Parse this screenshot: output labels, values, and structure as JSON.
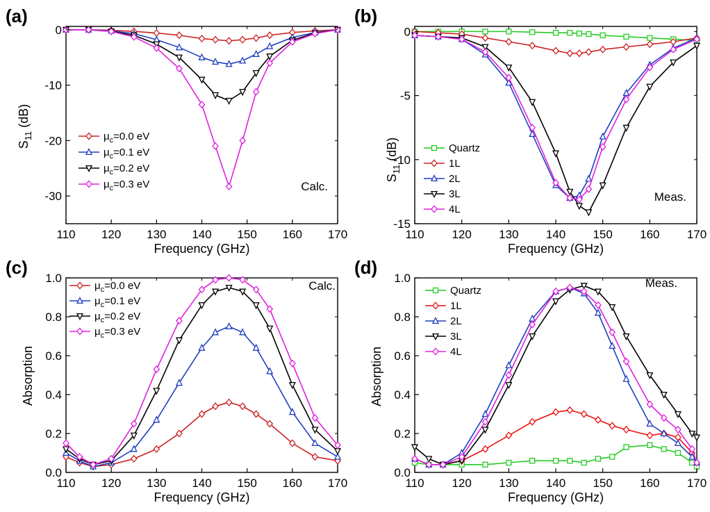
{
  "chart_data": [
    {
      "panel_label": "(a)",
      "type": "line",
      "xlabel": "Frequency (GHz)",
      "ylabel_main": "S",
      "ylabel_sub": "11",
      "ylabel_unit": " (dB)",
      "annotation": "Calc.",
      "xlim": [
        110,
        170
      ],
      "ylim": [
        -35,
        0.6
      ],
      "xticks": [
        110,
        120,
        130,
        140,
        150,
        160,
        170
      ],
      "yticks": [
        0,
        -10,
        -20,
        -30
      ],
      "x": [
        110,
        115,
        120,
        125,
        130,
        135,
        140,
        143,
        146,
        149,
        152,
        155,
        160,
        165,
        170
      ],
      "legend_placement": "left",
      "series": [
        {
          "name": "μc=0.0 eV",
          "name_main": "μ",
          "name_sub": "c",
          "name_rest": "=0.0 eV",
          "color": "#cc2222",
          "marker": "diamond",
          "values": [
            0,
            0,
            -0.1,
            -0.3,
            -0.6,
            -1.0,
            -1.6,
            -1.8,
            -2.0,
            -1.8,
            -1.5,
            -1.0,
            -0.5,
            -0.2,
            0
          ]
        },
        {
          "name": "μc=0.1 eV",
          "name_main": "μ",
          "name_sub": "c",
          "name_rest": "=0.1 eV",
          "color": "#1f3fbf",
          "marker": "triangle-up",
          "values": [
            0,
            0,
            -0.2,
            -0.7,
            -1.8,
            -3.2,
            -5.0,
            -5.8,
            -6.2,
            -5.6,
            -4.4,
            -3.0,
            -1.4,
            -0.5,
            0
          ]
        },
        {
          "name": "μc=0.2 eV",
          "name_main": "μ",
          "name_sub": "c",
          "name_rest": "=0.2 eV",
          "color": "#000000",
          "marker": "triangle-down",
          "values": [
            0,
            0,
            -0.3,
            -1.0,
            -2.6,
            -5.0,
            -9.0,
            -11.8,
            -12.8,
            -11.2,
            -7.8,
            -4.8,
            -1.9,
            -0.6,
            0
          ]
        },
        {
          "name": "μc=0.3 eV",
          "name_main": "μ",
          "name_sub": "c",
          "name_rest": "=0.3 eV",
          "color": "#e020e0",
          "marker": "diamond",
          "values": [
            0,
            0,
            -0.3,
            -1.3,
            -3.3,
            -7.0,
            -13.5,
            -21.0,
            -28.3,
            -20.0,
            -11.2,
            -6.0,
            -2.2,
            -0.7,
            0
          ]
        }
      ]
    },
    {
      "panel_label": "(b)",
      "type": "line",
      "xlabel": "Frequency (GHz)",
      "ylabel_main": "S",
      "ylabel_sub": "11",
      "ylabel_unit": " (dB)",
      "annotation": "Meas.",
      "xlim": [
        110,
        170
      ],
      "ylim": [
        -15,
        0.4
      ],
      "xticks": [
        110,
        120,
        130,
        140,
        150,
        160,
        170
      ],
      "yticks": [
        0,
        -5,
        -10,
        -15
      ],
      "x": [
        110,
        115,
        120,
        125,
        130,
        135,
        140,
        143,
        145,
        147,
        150,
        155,
        160,
        165,
        170
      ],
      "legend_placement": "left",
      "series": [
        {
          "name": "Quartz",
          "color": "#22cc22",
          "marker": "square",
          "values": [
            0,
            0,
            0,
            0,
            0,
            -0.05,
            -0.1,
            -0.1,
            -0.15,
            -0.2,
            -0.3,
            -0.4,
            -0.5,
            -0.6,
            -0.7
          ]
        },
        {
          "name": "1L",
          "color": "#cc2222",
          "marker": "diamond",
          "values": [
            0,
            -0.1,
            -0.2,
            -0.5,
            -0.8,
            -1.1,
            -1.5,
            -1.7,
            -1.7,
            -1.6,
            -1.4,
            -1.2,
            -1.0,
            -0.8,
            -0.5
          ]
        },
        {
          "name": "2L",
          "color": "#1f3fbf",
          "marker": "triangle-up",
          "values": [
            -0.3,
            -0.4,
            -0.6,
            -1.8,
            -4.0,
            -8.0,
            -12.0,
            -13.0,
            -12.8,
            -11.5,
            -8.2,
            -4.8,
            -2.6,
            -1.3,
            -0.5
          ]
        },
        {
          "name": "3L",
          "color": "#000000",
          "marker": "triangle-down",
          "values": [
            -0.3,
            -0.4,
            -0.5,
            -1.2,
            -2.8,
            -5.5,
            -9.5,
            -12.5,
            -13.6,
            -14.1,
            -12.0,
            -7.5,
            -4.3,
            -2.4,
            -1.1
          ]
        },
        {
          "name": "4L",
          "color": "#e020e0",
          "marker": "diamond",
          "values": [
            -0.3,
            -0.4,
            -0.6,
            -1.6,
            -3.6,
            -7.5,
            -11.8,
            -13.0,
            -13.1,
            -12.3,
            -9.0,
            -5.3,
            -2.8,
            -1.4,
            -0.6
          ]
        }
      ]
    },
    {
      "panel_label": "(c)",
      "type": "line",
      "xlabel": "Frequency (GHz)",
      "ylabel_main": "Absorption",
      "ylabel_sub": "",
      "ylabel_unit": "",
      "annotation": "Calc.",
      "xlim": [
        110,
        170
      ],
      "ylim": [
        0,
        1.0
      ],
      "xticks": [
        110,
        120,
        130,
        140,
        150,
        160,
        170
      ],
      "yticks": [
        0.0,
        0.2,
        0.4,
        0.6,
        0.8,
        1.0
      ],
      "ytick_labels": [
        "0.0",
        "0.2",
        "0.4",
        "0.6",
        "0.8",
        "1.0"
      ],
      "x": [
        110,
        113,
        116,
        120,
        125,
        130,
        135,
        140,
        143,
        146,
        149,
        152,
        155,
        160,
        165,
        170
      ],
      "legend_placement": "top-left",
      "series": [
        {
          "name": "μc=0.0 eV",
          "name_main": "μ",
          "name_sub": "c",
          "name_rest": "=0.0 eV",
          "color": "#cc2222",
          "marker": "diamond",
          "values": [
            0.08,
            0.05,
            0.03,
            0.04,
            0.07,
            0.12,
            0.2,
            0.3,
            0.34,
            0.36,
            0.34,
            0.3,
            0.25,
            0.15,
            0.08,
            0.06
          ]
        },
        {
          "name": "μc=0.1 eV",
          "name_main": "μ",
          "name_sub": "c",
          "name_rest": "=0.1 eV",
          "color": "#1f3fbf",
          "marker": "triangle-up",
          "values": [
            0.1,
            0.06,
            0.03,
            0.05,
            0.12,
            0.27,
            0.46,
            0.64,
            0.72,
            0.75,
            0.72,
            0.64,
            0.52,
            0.31,
            0.15,
            0.08
          ]
        },
        {
          "name": "μc=0.2 eV",
          "name_main": "μ",
          "name_sub": "c",
          "name_rest": "=0.2 eV",
          "color": "#000000",
          "marker": "triangle-down",
          "values": [
            0.12,
            0.07,
            0.04,
            0.06,
            0.19,
            0.42,
            0.68,
            0.86,
            0.93,
            0.95,
            0.93,
            0.86,
            0.74,
            0.45,
            0.22,
            0.11
          ]
        },
        {
          "name": "μc=0.3 eV",
          "name_main": "μ",
          "name_sub": "c",
          "name_rest": "=0.3 eV",
          "color": "#e020e0",
          "marker": "diamond",
          "values": [
            0.15,
            0.08,
            0.04,
            0.07,
            0.25,
            0.53,
            0.78,
            0.94,
            0.99,
            1.0,
            0.99,
            0.94,
            0.84,
            0.56,
            0.28,
            0.14
          ]
        }
      ]
    },
    {
      "panel_label": "(d)",
      "type": "line",
      "xlabel": "Frequency (GHz)",
      "ylabel_main": "Absorption",
      "ylabel_sub": "",
      "ylabel_unit": "",
      "annotation": "Meas.",
      "xlim": [
        110,
        170
      ],
      "ylim": [
        0,
        1.0
      ],
      "xticks": [
        110,
        120,
        130,
        140,
        150,
        160,
        170
      ],
      "yticks": [
        0.0,
        0.2,
        0.4,
        0.6,
        0.8,
        1.0
      ],
      "ytick_labels": [
        "0.0",
        "0.2",
        "0.4",
        "0.6",
        "0.8",
        "1.0"
      ],
      "x": [
        110,
        113,
        116,
        120,
        125,
        130,
        135,
        140,
        143,
        146,
        149,
        152,
        155,
        160,
        163,
        166,
        169,
        170
      ],
      "legend_placement": "top-left",
      "series": [
        {
          "name": "Quartz",
          "color": "#22cc22",
          "marker": "square",
          "values": [
            0.05,
            0.04,
            0.04,
            0.04,
            0.04,
            0.05,
            0.06,
            0.06,
            0.06,
            0.05,
            0.07,
            0.08,
            0.13,
            0.14,
            0.12,
            0.1,
            0.05,
            0.03
          ]
        },
        {
          "name": "1L",
          "color": "#ee1111",
          "marker": "diamond",
          "values": [
            0.07,
            0.04,
            0.04,
            0.06,
            0.12,
            0.19,
            0.26,
            0.31,
            0.32,
            0.3,
            0.27,
            0.24,
            0.22,
            0.19,
            0.2,
            0.18,
            0.1,
            0.05
          ]
        },
        {
          "name": "2L",
          "color": "#1f3fbf",
          "marker": "triangle-up",
          "values": [
            0.07,
            0.04,
            0.04,
            0.1,
            0.3,
            0.55,
            0.79,
            0.93,
            0.95,
            0.92,
            0.82,
            0.65,
            0.48,
            0.25,
            0.2,
            0.15,
            0.08,
            0.05
          ]
        },
        {
          "name": "3L",
          "color": "#000000",
          "marker": "triangle-down",
          "values": [
            0.13,
            0.07,
            0.04,
            0.06,
            0.22,
            0.45,
            0.7,
            0.88,
            0.94,
            0.96,
            0.93,
            0.85,
            0.7,
            0.5,
            0.4,
            0.3,
            0.2,
            0.18
          ]
        },
        {
          "name": "4L",
          "color": "#e020e0",
          "marker": "diamond",
          "values": [
            0.07,
            0.04,
            0.04,
            0.08,
            0.26,
            0.5,
            0.76,
            0.93,
            0.95,
            0.93,
            0.86,
            0.72,
            0.57,
            0.35,
            0.28,
            0.22,
            0.12,
            0.05
          ]
        }
      ]
    }
  ]
}
